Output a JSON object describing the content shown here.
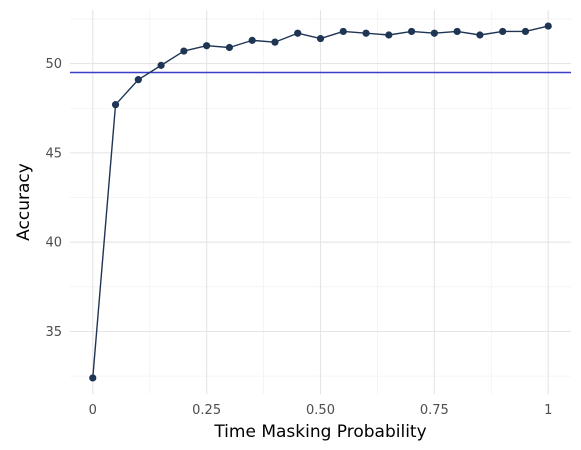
{
  "chart_data": {
    "type": "line",
    "title": "",
    "xlabel": "Time Masking Probability",
    "ylabel": "Accuracy",
    "xlim": [
      -0.05,
      1.05
    ],
    "ylim": [
      31.5,
      53.0
    ],
    "x_ticks": [
      0,
      0.25,
      0.5,
      0.75,
      1
    ],
    "x_tick_labels": [
      "0",
      "0.25",
      "0.50",
      "0.75",
      "1"
    ],
    "y_ticks": [
      35,
      40,
      45,
      50
    ],
    "y_tick_labels": [
      "35",
      "40",
      "45",
      "50"
    ],
    "grid": true,
    "legend": "none",
    "series": [
      {
        "x": [
          0,
          0.05,
          0.1,
          0.15,
          0.2,
          0.25,
          0.3,
          0.35,
          0.4,
          0.45,
          0.5,
          0.55,
          0.6,
          0.65,
          0.7,
          0.75,
          0.8,
          0.85,
          0.9,
          0.95,
          1.0
        ],
        "values": [
          32.4,
          47.7,
          49.1,
          49.9,
          50.7,
          51.0,
          50.9,
          51.3,
          51.2,
          51.7,
          51.4,
          51.8,
          51.7,
          51.6,
          51.8,
          51.7,
          51.8,
          51.6,
          51.8,
          51.8,
          52.1
        ],
        "color": "#1f3554"
      }
    ],
    "reference_lines": [
      {
        "orientation": "horizontal",
        "y": 49.5,
        "color": "#3b3fc8"
      }
    ]
  }
}
